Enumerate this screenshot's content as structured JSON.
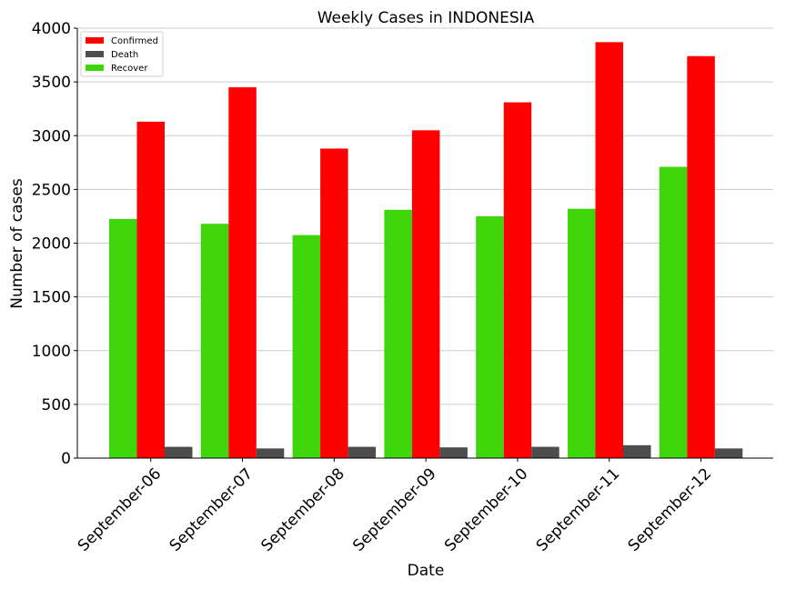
{
  "chart_data": {
    "type": "bar",
    "title": "Weekly Cases in INDONESIA",
    "xlabel": "Date",
    "ylabel": "Number of cases",
    "categories": [
      "September-06",
      "September-07",
      "September-08",
      "September-09",
      "September-10",
      "September-11",
      "September-12"
    ],
    "ylim": [
      0,
      4000
    ],
    "yticks": [
      0,
      500,
      1000,
      1500,
      2000,
      2500,
      3000,
      3500,
      4000
    ],
    "grid": "horizontal",
    "legend_position": "top-left",
    "bar_order": [
      "Recover",
      "Confirmed",
      "Death"
    ],
    "series": [
      {
        "name": "Confirmed",
        "color": "#ff0000",
        "values": [
          3130,
          3450,
          2880,
          3050,
          3310,
          3870,
          3740
        ]
      },
      {
        "name": "Death",
        "color": "#4d4d4d",
        "values": [
          105,
          90,
          105,
          100,
          105,
          120,
          90
        ]
      },
      {
        "name": "Recover",
        "color": "#3ed60a",
        "values": [
          2225,
          2180,
          2075,
          2310,
          2250,
          2320,
          2710
        ]
      }
    ]
  }
}
